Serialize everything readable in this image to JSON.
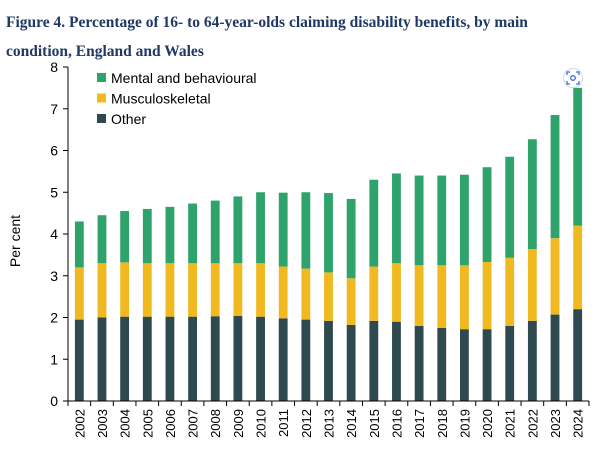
{
  "figure": {
    "title": "Figure 4. Percentage of 16- to 64-year-olds claiming disability benefits, by main condition, England and Wales"
  },
  "chart_data": {
    "type": "bar",
    "stacked": true,
    "title": "Figure 4. Percentage of 16- to 64-year-olds claiming disability benefits, by main condition, England and Wales",
    "xlabel": "",
    "ylabel": "Per cent",
    "ylim": [
      0,
      8
    ],
    "yticks": [
      "0",
      "1",
      "2",
      "3",
      "4",
      "5",
      "6",
      "7",
      "8"
    ],
    "grid": false,
    "legend_position": "top-left",
    "categories": [
      "2002",
      "2003",
      "2004",
      "2005",
      "2006",
      "2007",
      "2008",
      "2009",
      "2010",
      "2011",
      "2012",
      "2013",
      "2014",
      "2015",
      "2016",
      "2017",
      "2018",
      "2019",
      "2020",
      "2021",
      "2022",
      "2023",
      "2024"
    ],
    "series": [
      {
        "name": "Other",
        "color": "#2e4a4f",
        "values": [
          1.95,
          2.0,
          2.02,
          2.02,
          2.02,
          2.02,
          2.03,
          2.04,
          2.02,
          1.98,
          1.95,
          1.92,
          1.82,
          1.92,
          1.9,
          1.8,
          1.75,
          1.72,
          1.72,
          1.8,
          1.92,
          2.07,
          2.2
        ]
      },
      {
        "name": "Musculoskeletal",
        "color": "#f0b920",
        "values": [
          1.25,
          1.3,
          1.3,
          1.28,
          1.28,
          1.28,
          1.27,
          1.26,
          1.28,
          1.24,
          1.22,
          1.16,
          1.12,
          1.3,
          1.4,
          1.45,
          1.5,
          1.53,
          1.61,
          1.63,
          1.72,
          1.83,
          2.0
        ]
      },
      {
        "name": "Mental and behavioural",
        "color": "#2ea36b",
        "values": [
          1.1,
          1.15,
          1.23,
          1.3,
          1.35,
          1.43,
          1.5,
          1.6,
          1.7,
          1.77,
          1.83,
          1.9,
          1.9,
          2.08,
          2.15,
          2.15,
          2.15,
          2.17,
          2.27,
          2.42,
          2.63,
          2.95,
          3.3
        ]
      }
    ]
  },
  "ui": {
    "scan_icon": "scan-icon"
  }
}
